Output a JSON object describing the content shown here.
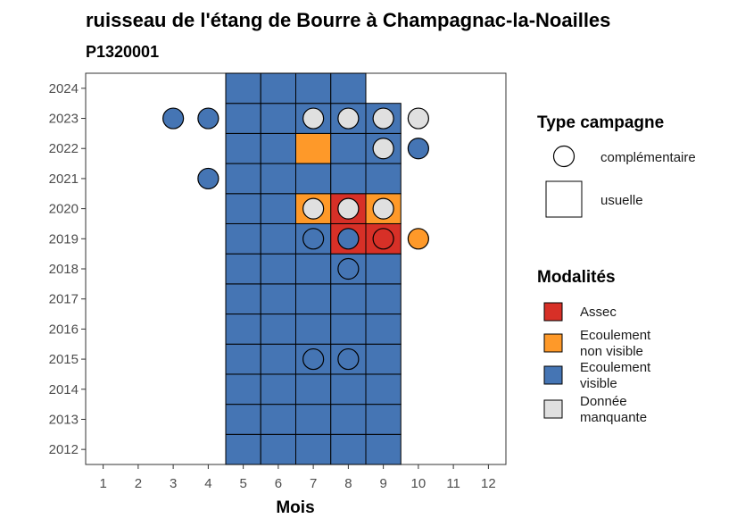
{
  "chart_data": {
    "type": "heatmap",
    "title": "ruisseau de l'étang de Bourre à Champagnac-la-Noailles",
    "subtitle": "P1320001",
    "xlabel": "Mois",
    "ylabel": "",
    "x_ticks": [
      "1",
      "2",
      "3",
      "4",
      "5",
      "6",
      "7",
      "8",
      "9",
      "10",
      "11",
      "12"
    ],
    "y_ticks": [
      "2012",
      "2013",
      "2014",
      "2015",
      "2016",
      "2017",
      "2018",
      "2019",
      "2020",
      "2021",
      "2022",
      "2023",
      "2024"
    ],
    "xlim": [
      0.5,
      12.5
    ],
    "ylim": [
      2011.5,
      2024.5
    ],
    "grid": false,
    "colors": {
      "Assec": "#d73027",
      "Ecoulement non visible": "#fe9929",
      "Ecoulement visible": "#4575b4",
      "Donnée manquante": "#e0e0e0"
    },
    "usuelle": [
      {
        "year": 2012,
        "month": 5,
        "modalite": "Ecoulement visible"
      },
      {
        "year": 2012,
        "month": 6,
        "modalite": "Ecoulement visible"
      },
      {
        "year": 2012,
        "month": 7,
        "modalite": "Ecoulement visible"
      },
      {
        "year": 2012,
        "month": 8,
        "modalite": "Ecoulement visible"
      },
      {
        "year": 2012,
        "month": 9,
        "modalite": "Ecoulement visible"
      },
      {
        "year": 2013,
        "month": 5,
        "modalite": "Ecoulement visible"
      },
      {
        "year": 2013,
        "month": 6,
        "modalite": "Ecoulement visible"
      },
      {
        "year": 2013,
        "month": 7,
        "modalite": "Ecoulement visible"
      },
      {
        "year": 2013,
        "month": 8,
        "modalite": "Ecoulement visible"
      },
      {
        "year": 2013,
        "month": 9,
        "modalite": "Ecoulement visible"
      },
      {
        "year": 2014,
        "month": 5,
        "modalite": "Ecoulement visible"
      },
      {
        "year": 2014,
        "month": 6,
        "modalite": "Ecoulement visible"
      },
      {
        "year": 2014,
        "month": 7,
        "modalite": "Ecoulement visible"
      },
      {
        "year": 2014,
        "month": 8,
        "modalite": "Ecoulement visible"
      },
      {
        "year": 2014,
        "month": 9,
        "modalite": "Ecoulement visible"
      },
      {
        "year": 2015,
        "month": 5,
        "modalite": "Ecoulement visible"
      },
      {
        "year": 2015,
        "month": 6,
        "modalite": "Ecoulement visible"
      },
      {
        "year": 2015,
        "month": 7,
        "modalite": "Ecoulement visible"
      },
      {
        "year": 2015,
        "month": 8,
        "modalite": "Ecoulement visible"
      },
      {
        "year": 2015,
        "month": 9,
        "modalite": "Ecoulement visible"
      },
      {
        "year": 2016,
        "month": 5,
        "modalite": "Ecoulement visible"
      },
      {
        "year": 2016,
        "month": 6,
        "modalite": "Ecoulement visible"
      },
      {
        "year": 2016,
        "month": 7,
        "modalite": "Ecoulement visible"
      },
      {
        "year": 2016,
        "month": 8,
        "modalite": "Ecoulement visible"
      },
      {
        "year": 2016,
        "month": 9,
        "modalite": "Ecoulement visible"
      },
      {
        "year": 2017,
        "month": 5,
        "modalite": "Ecoulement visible"
      },
      {
        "year": 2017,
        "month": 6,
        "modalite": "Ecoulement visible"
      },
      {
        "year": 2017,
        "month": 7,
        "modalite": "Ecoulement visible"
      },
      {
        "year": 2017,
        "month": 8,
        "modalite": "Ecoulement visible"
      },
      {
        "year": 2017,
        "month": 9,
        "modalite": "Ecoulement visible"
      },
      {
        "year": 2018,
        "month": 5,
        "modalite": "Ecoulement visible"
      },
      {
        "year": 2018,
        "month": 6,
        "modalite": "Ecoulement visible"
      },
      {
        "year": 2018,
        "month": 7,
        "modalite": "Ecoulement visible"
      },
      {
        "year": 2018,
        "month": 8,
        "modalite": "Ecoulement visible"
      },
      {
        "year": 2018,
        "month": 9,
        "modalite": "Ecoulement visible"
      },
      {
        "year": 2019,
        "month": 5,
        "modalite": "Ecoulement visible"
      },
      {
        "year": 2019,
        "month": 6,
        "modalite": "Ecoulement visible"
      },
      {
        "year": 2019,
        "month": 7,
        "modalite": "Ecoulement visible"
      },
      {
        "year": 2019,
        "month": 8,
        "modalite": "Assec"
      },
      {
        "year": 2019,
        "month": 9,
        "modalite": "Assec"
      },
      {
        "year": 2020,
        "month": 5,
        "modalite": "Ecoulement visible"
      },
      {
        "year": 2020,
        "month": 6,
        "modalite": "Ecoulement visible"
      },
      {
        "year": 2020,
        "month": 7,
        "modalite": "Ecoulement non visible"
      },
      {
        "year": 2020,
        "month": 8,
        "modalite": "Assec"
      },
      {
        "year": 2020,
        "month": 9,
        "modalite": "Ecoulement non visible"
      },
      {
        "year": 2021,
        "month": 5,
        "modalite": "Ecoulement visible"
      },
      {
        "year": 2021,
        "month": 6,
        "modalite": "Ecoulement visible"
      },
      {
        "year": 2021,
        "month": 7,
        "modalite": "Ecoulement visible"
      },
      {
        "year": 2021,
        "month": 8,
        "modalite": "Ecoulement visible"
      },
      {
        "year": 2021,
        "month": 9,
        "modalite": "Ecoulement visible"
      },
      {
        "year": 2022,
        "month": 5,
        "modalite": "Ecoulement visible"
      },
      {
        "year": 2022,
        "month": 6,
        "modalite": "Ecoulement visible"
      },
      {
        "year": 2022,
        "month": 7,
        "modalite": "Ecoulement non visible"
      },
      {
        "year": 2022,
        "month": 8,
        "modalite": "Ecoulement visible"
      },
      {
        "year": 2022,
        "month": 9,
        "modalite": "Ecoulement visible"
      },
      {
        "year": 2023,
        "month": 5,
        "modalite": "Ecoulement visible"
      },
      {
        "year": 2023,
        "month": 6,
        "modalite": "Ecoulement visible"
      },
      {
        "year": 2023,
        "month": 7,
        "modalite": "Ecoulement visible"
      },
      {
        "year": 2023,
        "month": 8,
        "modalite": "Ecoulement visible"
      },
      {
        "year": 2023,
        "month": 9,
        "modalite": "Ecoulement visible"
      },
      {
        "year": 2024,
        "month": 5,
        "modalite": "Ecoulement visible"
      },
      {
        "year": 2024,
        "month": 6,
        "modalite": "Ecoulement visible"
      },
      {
        "year": 2024,
        "month": 7,
        "modalite": "Ecoulement visible"
      },
      {
        "year": 2024,
        "month": 8,
        "modalite": "Ecoulement visible"
      }
    ],
    "complementaire": [
      {
        "year": 2015,
        "month": 7,
        "modalite": "Ecoulement visible"
      },
      {
        "year": 2015,
        "month": 8,
        "modalite": "Ecoulement visible"
      },
      {
        "year": 2018,
        "month": 8,
        "modalite": "Ecoulement visible"
      },
      {
        "year": 2019,
        "month": 7,
        "modalite": "Ecoulement visible"
      },
      {
        "year": 2019,
        "month": 8,
        "modalite": "Ecoulement visible"
      },
      {
        "year": 2019,
        "month": 9,
        "modalite": "Assec"
      },
      {
        "year": 2019,
        "month": 10,
        "modalite": "Ecoulement non visible"
      },
      {
        "year": 2020,
        "month": 7,
        "modalite": "Donnée manquante"
      },
      {
        "year": 2020,
        "month": 8,
        "modalite": "Donnée manquante"
      },
      {
        "year": 2020,
        "month": 9,
        "modalite": "Donnée manquante"
      },
      {
        "year": 2021,
        "month": 4,
        "modalite": "Ecoulement visible"
      },
      {
        "year": 2022,
        "month": 9,
        "modalite": "Donnée manquante"
      },
      {
        "year": 2022,
        "month": 10,
        "modalite": "Ecoulement visible"
      },
      {
        "year": 2023,
        "month": 3,
        "modalite": "Ecoulement visible"
      },
      {
        "year": 2023,
        "month": 4,
        "modalite": "Ecoulement visible"
      },
      {
        "year": 2023,
        "month": 7,
        "modalite": "Donnée manquante"
      },
      {
        "year": 2023,
        "month": 8,
        "modalite": "Donnée manquante"
      },
      {
        "year": 2023,
        "month": 9,
        "modalite": "Donnée manquante"
      },
      {
        "year": 2023,
        "month": 10,
        "modalite": "Donnée manquante"
      }
    ],
    "legend": {
      "placement": "right",
      "type_title": "Type campagne",
      "type_items": [
        "complémentaire",
        "usuelle"
      ],
      "modalites_title": "Modalités",
      "modalites_items": [
        {
          "lines": [
            "Assec"
          ],
          "color": "#d73027"
        },
        {
          "lines": [
            "Ecoulement",
            "non visible"
          ],
          "color": "#fe9929"
        },
        {
          "lines": [
            "Ecoulement",
            "visible"
          ],
          "color": "#4575b4"
        },
        {
          "lines": [
            "Donnée",
            "manquante"
          ],
          "color": "#e0e0e0"
        }
      ]
    }
  }
}
